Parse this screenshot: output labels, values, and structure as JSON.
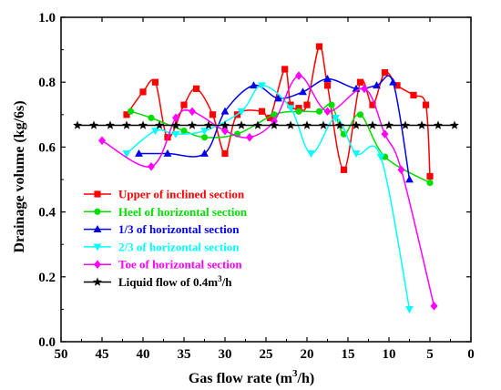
{
  "chart_data": {
    "type": "line",
    "title": "",
    "xlabel": "Gas flow rate (m",
    "xlabel_sup": "3",
    "xlabel_tail": "/h)",
    "ylabel": "Drainage volume (kg/6s)",
    "xlim": [
      50,
      0
    ],
    "ylim": [
      0.0,
      1.0
    ],
    "x_reversed": true,
    "x_ticks": [
      50,
      45,
      40,
      35,
      30,
      25,
      20,
      15,
      10,
      5,
      0
    ],
    "y_ticks": [
      0.0,
      0.2,
      0.4,
      0.6,
      0.8,
      1.0
    ],
    "x_tick_labels": [
      "50",
      "45",
      "40",
      "35",
      "30",
      "25",
      "20",
      "15",
      "10",
      "5",
      "0"
    ],
    "y_tick_labels": [
      "0.0",
      "0.2",
      "0.4",
      "0.6",
      "0.8",
      "1.0"
    ],
    "grid": false,
    "legend_position": "center-left",
    "series": [
      {
        "name": "Upper of inclined section",
        "name_sup": "",
        "name_tail": "",
        "color": "#ff0000",
        "marker": "square",
        "x": [
          42,
          40,
          38.5,
          37,
          35,
          33.5,
          31.5,
          30,
          28.5,
          25.5,
          24.5,
          22.7,
          22,
          21,
          20,
          18.5,
          17.5,
          15.5,
          13.5,
          12,
          10.5,
          9,
          7,
          5.5,
          5
        ],
        "y": [
          0.7,
          0.77,
          0.8,
          0.63,
          0.73,
          0.78,
          0.7,
          0.58,
          0.7,
          0.71,
          0.69,
          0.84,
          0.73,
          0.72,
          0.73,
          0.91,
          0.79,
          0.53,
          0.8,
          0.73,
          0.83,
          0.79,
          0.76,
          0.73,
          0.51
        ]
      },
      {
        "name": "Heel of horizontal section",
        "name_sup": "",
        "name_tail": "",
        "color": "#00dd00",
        "marker": "circle",
        "x": [
          41.5,
          39,
          35,
          32.5,
          28.5,
          24,
          21,
          18.5,
          17,
          15.5,
          13.5,
          10.5,
          5
        ],
        "y": [
          0.71,
          0.69,
          0.65,
          0.63,
          0.64,
          0.7,
          0.71,
          0.71,
          0.73,
          0.64,
          0.7,
          0.57,
          0.49
        ]
      },
      {
        "name": "1/3 of horizontal section",
        "name_sup": "",
        "name_tail": "",
        "color": "#0000ee",
        "marker": "triangle-up",
        "x": [
          40.5,
          37,
          32.5,
          30,
          26.5,
          23.5,
          20.5,
          17.5,
          14,
          11.5,
          9.5,
          7.5
        ],
        "y": [
          0.58,
          0.58,
          0.58,
          0.71,
          0.79,
          0.75,
          0.77,
          0.81,
          0.78,
          0.79,
          0.8,
          0.5
        ]
      },
      {
        "name": "2/3 of horizontal section",
        "name_sup": "",
        "name_tail": "",
        "color": "#00ffff",
        "marker": "triangle-down",
        "x": [
          42,
          38.5,
          36,
          32.5,
          28,
          25.5,
          22,
          19.5,
          16.5,
          14,
          11,
          7.5
        ],
        "y": [
          0.58,
          0.65,
          0.64,
          0.65,
          0.71,
          0.79,
          0.72,
          0.58,
          0.69,
          0.58,
          0.57,
          0.1
        ]
      },
      {
        "name": "Toe of horizontal section",
        "name_sup": "",
        "name_tail": "",
        "color": "#ff00ff",
        "marker": "diamond",
        "x": [
          45,
          39,
          36,
          34,
          30,
          27,
          24,
          21,
          17.5,
          13,
          10.5,
          8.5,
          4.5
        ],
        "y": [
          0.62,
          0.54,
          0.69,
          0.71,
          0.65,
          0.63,
          0.68,
          0.82,
          0.71,
          0.78,
          0.64,
          0.53,
          0.11
        ]
      },
      {
        "name": "Liquid flow of 0.4m",
        "name_sup": "3",
        "name_tail": "/h",
        "color": "#000000",
        "marker": "star",
        "x": [
          48,
          46,
          44,
          42,
          40,
          38,
          36,
          34,
          32,
          30,
          28,
          26,
          24,
          22,
          20,
          18,
          16,
          14,
          12,
          10,
          8,
          6,
          4,
          2
        ],
        "y": [
          0.667,
          0.667,
          0.667,
          0.667,
          0.667,
          0.667,
          0.667,
          0.667,
          0.667,
          0.667,
          0.667,
          0.667,
          0.667,
          0.667,
          0.667,
          0.667,
          0.667,
          0.667,
          0.667,
          0.667,
          0.667,
          0.667,
          0.667,
          0.667
        ]
      }
    ]
  }
}
